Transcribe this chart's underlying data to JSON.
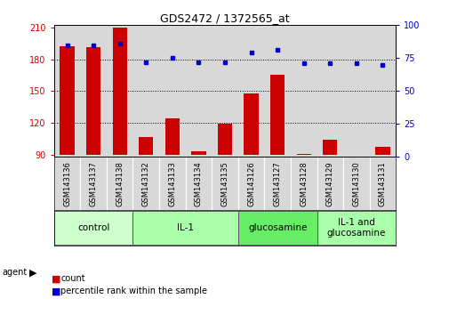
{
  "title": "GDS2472 / 1372565_at",
  "samples": [
    "GSM143136",
    "GSM143137",
    "GSM143138",
    "GSM143132",
    "GSM143133",
    "GSM143134",
    "GSM143135",
    "GSM143126",
    "GSM143127",
    "GSM143128",
    "GSM143129",
    "GSM143130",
    "GSM143131"
  ],
  "counts": [
    192,
    191,
    210,
    107,
    124,
    93,
    119,
    148,
    165,
    91,
    104,
    90,
    98
  ],
  "percentiles": [
    85,
    85,
    86,
    72,
    75,
    72,
    72,
    79,
    81,
    71,
    71,
    71,
    70
  ],
  "groups": [
    {
      "label": "control",
      "start": 0,
      "end": 3,
      "color": "#ccffcc"
    },
    {
      "label": "IL-1",
      "start": 3,
      "end": 7,
      "color": "#aaffaa"
    },
    {
      "label": "glucosamine",
      "start": 7,
      "end": 10,
      "color": "#66dd66"
    },
    {
      "label": "IL-1 and\nglucosamine",
      "start": 10,
      "end": 13,
      "color": "#aaffaa"
    }
  ],
  "ylim_left": [
    88,
    212
  ],
  "yticks_left": [
    90,
    120,
    150,
    180,
    210
  ],
  "ylim_right": [
    0,
    100
  ],
  "yticks_right": [
    0,
    25,
    50,
    75,
    100
  ],
  "bar_color": "#cc0000",
  "dot_color": "#0000cc",
  "bar_width": 0.55,
  "background_color": "#ffffff",
  "col_bg": "#d8d8d8",
  "legend_count_color": "#cc0000",
  "legend_pct_color": "#0000cc"
}
